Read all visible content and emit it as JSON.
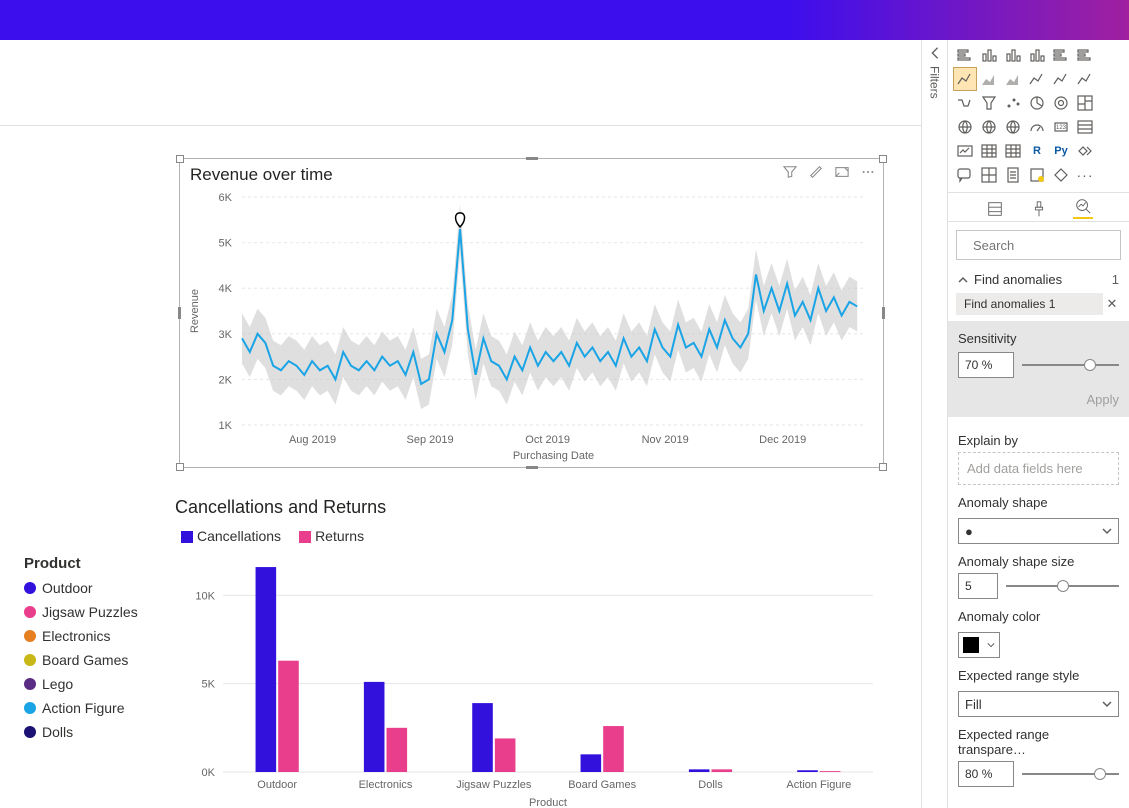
{
  "line_chart": {
    "title": "Revenue over time",
    "type": "line",
    "y_label": "Revenue",
    "x_label": "Purchasing Date",
    "x_ticks": [
      "Aug 2019",
      "Sep 2019",
      "Oct 2019",
      "Nov 2019",
      "Dec 2019"
    ],
    "y_ticks": [
      1,
      2,
      3,
      4,
      5,
      6
    ],
    "y_tick_labels": [
      "1K",
      "2K",
      "3K",
      "4K",
      "5K",
      "6K"
    ],
    "x_range": [
      0,
      160
    ],
    "y_range": [
      1,
      6
    ],
    "line_color": "#1aa4e6",
    "band_color": "#c9c9c9",
    "grid_color": "#e6e6e6",
    "anomaly_marker": {
      "x": 56,
      "y": 5.3,
      "shape": "teardrop",
      "color": "#000000"
    },
    "series": [
      [
        0,
        2.9
      ],
      [
        2,
        2.6
      ],
      [
        4,
        3.0
      ],
      [
        6,
        2.8
      ],
      [
        8,
        2.3
      ],
      [
        10,
        2.2
      ],
      [
        12,
        2.4
      ],
      [
        14,
        2.3
      ],
      [
        16,
        2.1
      ],
      [
        18,
        2.4
      ],
      [
        20,
        2.2
      ],
      [
        22,
        2.3
      ],
      [
        24,
        2.0
      ],
      [
        26,
        2.6
      ],
      [
        28,
        2.3
      ],
      [
        30,
        2.2
      ],
      [
        32,
        2.4
      ],
      [
        34,
        2.2
      ],
      [
        36,
        2.5
      ],
      [
        38,
        2.3
      ],
      [
        40,
        2.4
      ],
      [
        42,
        2.1
      ],
      [
        44,
        2.6
      ],
      [
        46,
        1.9
      ],
      [
        48,
        2.0
      ],
      [
        50,
        3.0
      ],
      [
        52,
        2.6
      ],
      [
        54,
        3.3
      ],
      [
        56,
        5.3
      ],
      [
        58,
        3.1
      ],
      [
        60,
        2.1
      ],
      [
        62,
        2.9
      ],
      [
        64,
        2.4
      ],
      [
        66,
        2.3
      ],
      [
        68,
        2.0
      ],
      [
        70,
        2.5
      ],
      [
        72,
        2.2
      ],
      [
        74,
        2.7
      ],
      [
        76,
        2.3
      ],
      [
        78,
        2.6
      ],
      [
        80,
        2.4
      ],
      [
        82,
        2.6
      ],
      [
        84,
        2.3
      ],
      [
        86,
        2.8
      ],
      [
        88,
        2.5
      ],
      [
        90,
        2.7
      ],
      [
        92,
        2.4
      ],
      [
        94,
        2.6
      ],
      [
        96,
        2.3
      ],
      [
        98,
        2.9
      ],
      [
        100,
        2.5
      ],
      [
        102,
        2.7
      ],
      [
        104,
        2.4
      ],
      [
        106,
        3.1
      ],
      [
        108,
        2.7
      ],
      [
        110,
        2.5
      ],
      [
        112,
        3.2
      ],
      [
        114,
        2.7
      ],
      [
        116,
        2.8
      ],
      [
        118,
        2.5
      ],
      [
        120,
        3.1
      ],
      [
        122,
        2.7
      ],
      [
        124,
        3.3
      ],
      [
        126,
        2.9
      ],
      [
        128,
        2.7
      ],
      [
        130,
        3.0
      ],
      [
        132,
        4.3
      ],
      [
        134,
        3.5
      ],
      [
        136,
        4.0
      ],
      [
        138,
        3.5
      ],
      [
        140,
        4.1
      ],
      [
        142,
        3.4
      ],
      [
        144,
        3.7
      ],
      [
        146,
        3.3
      ],
      [
        148,
        4.0
      ],
      [
        150,
        3.5
      ],
      [
        152,
        3.8
      ],
      [
        154,
        3.4
      ],
      [
        156,
        3.7
      ],
      [
        158,
        3.6
      ]
    ],
    "band_half_width": 0.55
  },
  "bar_chart": {
    "title": "Cancellations and Returns",
    "type": "grouped-bar",
    "legend": [
      {
        "label": "Cancellations",
        "color": "#3311dd"
      },
      {
        "label": "Returns",
        "color": "#e83e8c"
      }
    ],
    "x_label": "Product",
    "y_ticks": [
      0,
      5,
      10
    ],
    "y_tick_labels": [
      "0K",
      "5K",
      "10K"
    ],
    "y_range": [
      0,
      12
    ],
    "categories": [
      "Outdoor",
      "Electronics",
      "Jigsaw Puzzles",
      "Board Games",
      "Dolls",
      "Action Figure"
    ],
    "series": {
      "Cancellations": [
        11.6,
        5.1,
        3.9,
        1.0,
        0.15,
        0.1
      ],
      "Returns": [
        6.3,
        2.5,
        1.9,
        2.6,
        0.15,
        0.05
      ]
    },
    "bar_width": 0.38,
    "grid_color": "#e6e6e6"
  },
  "product_legend": {
    "title": "Product",
    "items": [
      {
        "label": "Outdoor",
        "color": "#3311dd"
      },
      {
        "label": "Jigsaw Puzzles",
        "color": "#e83e8c"
      },
      {
        "label": "Electronics",
        "color": "#e67e22"
      },
      {
        "label": "Board Games",
        "color": "#c7b815"
      },
      {
        "label": "Lego",
        "color": "#5b2c84"
      },
      {
        "label": "Action Figure",
        "color": "#1aa4e6"
      },
      {
        "label": "Dolls",
        "color": "#1b1273"
      }
    ]
  },
  "filters_rail_label": "Filters",
  "right_panel": {
    "search_placeholder": "Search",
    "accordion_title": "Find anomalies",
    "accordion_count": "1",
    "chip_label": "Find anomalies 1",
    "sensitivity": {
      "label": "Sensitivity",
      "value": "70",
      "unit": "%",
      "slider_pct": 70
    },
    "apply_label": "Apply",
    "explain_by_label": "Explain by",
    "explain_by_placeholder": "Add data fields here",
    "anomaly_shape_label": "Anomaly shape",
    "anomaly_shape_value": "●",
    "anomaly_size": {
      "label": "Anomaly shape size",
      "value": "5",
      "slider_pct": 50
    },
    "anomaly_color_label": "Anomaly color",
    "anomaly_color_value": "#000000",
    "expected_style_label": "Expected range style",
    "expected_style_value": "Fill",
    "expected_trans": {
      "label": "Expected range transpare…",
      "value": "80",
      "unit": "%",
      "slider_pct": 80
    }
  }
}
